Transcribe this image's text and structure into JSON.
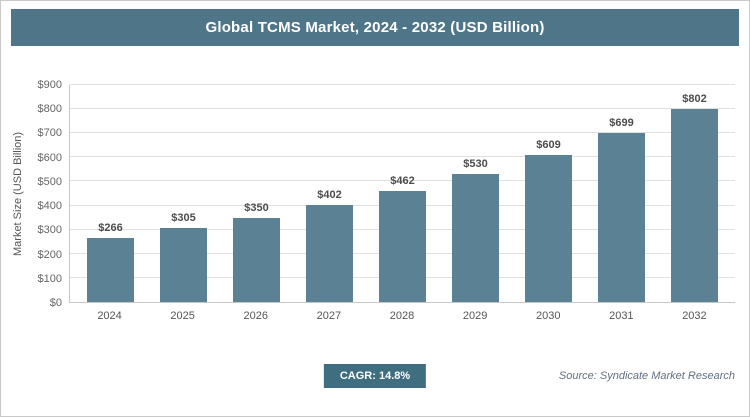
{
  "header": {
    "title": "Global TCMS Market, 2024 - 2032 (USD Billion)"
  },
  "chart_data": {
    "type": "bar",
    "title": "Global TCMS Market, 2024 - 2032 (USD Billion)",
    "categories": [
      "2024",
      "2025",
      "2026",
      "2027",
      "2028",
      "2029",
      "2030",
      "2031",
      "2032"
    ],
    "values": [
      266,
      305,
      350,
      402,
      462,
      530,
      609,
      699,
      802
    ],
    "value_labels": [
      "$266",
      "$305",
      "$350",
      "$402",
      "$462",
      "$530",
      "$609",
      "$699",
      "$802"
    ],
    "xlabel": "",
    "ylabel": "Market Size (USD Billion)",
    "ylim": [
      0,
      900
    ],
    "ytick_step": 100,
    "ytick_labels": [
      "$0",
      "$100",
      "$200",
      "$300",
      "$400",
      "$500",
      "$600",
      "$700",
      "$800",
      "$900"
    ],
    "grid": true,
    "legend": "none",
    "bar_color": "#5b8294",
    "header_color": "#4f7688"
  },
  "footer": {
    "cagr_label": "CAGR: 14.8%",
    "source": "Source: Syndicate Market Research"
  }
}
